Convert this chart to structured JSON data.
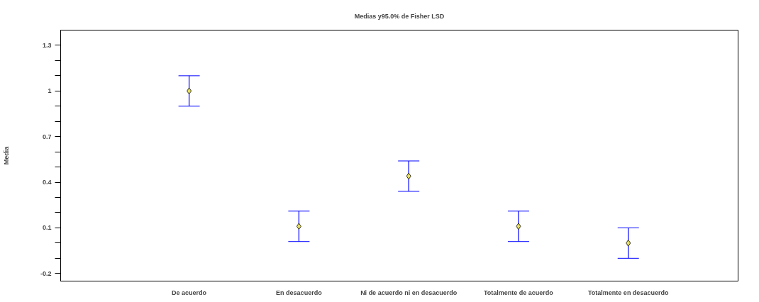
{
  "chart_data": {
    "type": "scatter",
    "title": "Medias y95.0% de Fisher LSD",
    "ylabel": "Media",
    "categories": [
      "De acuerdo",
      "En desacuerdo",
      "Ni de acuerdo ni en desacuerdo",
      "Totalmente de acuerdo",
      "Totalmente en desacuerdo"
    ],
    "series": [
      {
        "color": "#e8e060",
        "values": [
          1.0,
          0.11,
          0.44,
          0.11,
          0.0
        ],
        "errors": [
          0.1,
          0.1,
          0.1,
          0.1,
          0.1
        ]
      }
    ],
    "marker": "diamond",
    "grid": false,
    "ylim": [
      -0.25,
      1.4
    ],
    "yticks": [
      -0.2,
      {
        "value": -0.1,
        "label": null
      },
      {
        "value": 0.0,
        "label": null
      },
      0.1,
      {
        "value": 0.2,
        "label": null
      },
      {
        "value": 0.3,
        "label": null
      },
      0.4,
      {
        "value": 0.5,
        "label": null
      },
      {
        "value": 0.6,
        "label": null
      },
      0.7,
      {
        "value": 0.8,
        "label": null
      },
      {
        "value": 0.9,
        "label": null
      },
      1,
      {
        "value": 1.1,
        "label": null
      },
      {
        "value": 1.2,
        "label": null
      },
      1.3
    ]
  }
}
